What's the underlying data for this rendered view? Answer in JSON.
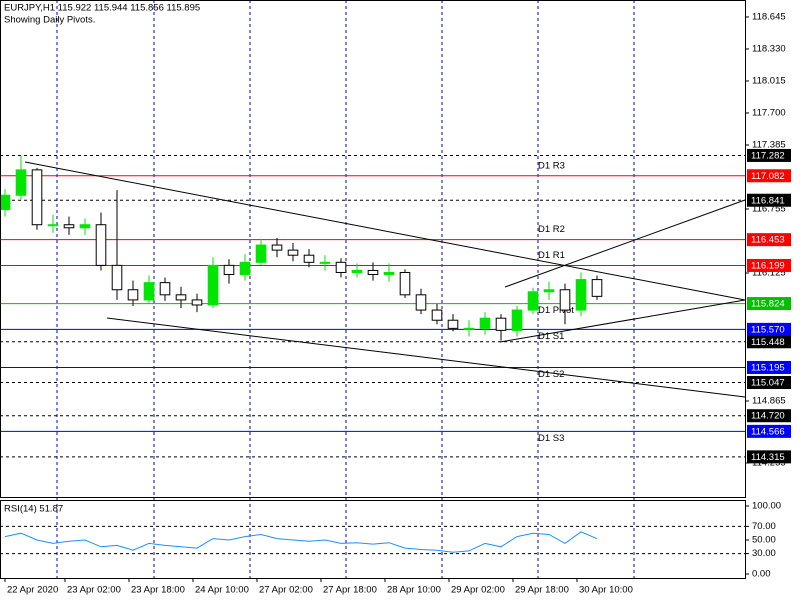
{
  "chart_data": [
    {
      "type": "candlestick",
      "title": "EURJPY,H1  115.922 115.944 115.856 115.895",
      "subtitle": "Showing Daily Pivots.",
      "x": [
        0,
        4,
        8,
        12,
        16,
        20,
        24,
        28,
        32,
        36,
        40,
        44,
        48,
        52,
        56,
        60,
        64,
        68,
        72,
        76,
        80,
        84,
        88,
        92,
        96,
        100,
        104,
        108,
        112,
        116,
        120,
        124,
        128,
        132,
        136,
        140,
        144,
        148
      ],
      "open": [
        116.75,
        116.89,
        117.14,
        116.6,
        116.6,
        116.57,
        116.6,
        116.2,
        115.96,
        115.86,
        116.03,
        115.91,
        115.86,
        115.81,
        116.2,
        116.11,
        116.23,
        116.4,
        116.35,
        116.3,
        116.23,
        116.23,
        116.13,
        116.15,
        116.11,
        116.13,
        115.91,
        115.76,
        115.66,
        115.58,
        115.58,
        115.68,
        115.56,
        115.76,
        115.94,
        115.96,
        115.76,
        116.06
      ],
      "high": [
        116.95,
        117.28,
        117.16,
        116.7,
        116.68,
        116.66,
        116.72,
        116.94,
        116.05,
        116.1,
        116.08,
        115.99,
        115.92,
        116.28,
        116.26,
        116.31,
        116.46,
        116.47,
        116.42,
        116.36,
        116.3,
        116.27,
        116.22,
        116.23,
        116.22,
        116.16,
        115.97,
        115.82,
        115.72,
        115.66,
        115.74,
        115.72,
        115.8,
        115.98,
        116.04,
        116.02,
        116.13,
        116.1
      ],
      "low": [
        116.68,
        116.85,
        116.55,
        116.52,
        116.5,
        116.5,
        116.15,
        115.86,
        115.8,
        115.82,
        115.85,
        115.78,
        115.74,
        115.78,
        116.02,
        116.05,
        116.2,
        116.28,
        116.24,
        116.18,
        116.15,
        116.08,
        116.08,
        116.05,
        116.04,
        115.88,
        115.72,
        115.62,
        115.55,
        115.5,
        115.52,
        115.46,
        115.5,
        115.72,
        115.86,
        115.62,
        115.7,
        115.86
      ],
      "close": [
        116.89,
        117.14,
        116.6,
        116.6,
        116.57,
        116.6,
        116.2,
        115.96,
        115.86,
        116.03,
        115.91,
        115.86,
        115.81,
        116.2,
        116.11,
        116.23,
        116.4,
        116.35,
        116.3,
        116.23,
        116.23,
        116.13,
        116.15,
        116.11,
        116.13,
        115.91,
        115.76,
        115.66,
        115.58,
        115.58,
        115.68,
        115.56,
        115.76,
        115.94,
        115.96,
        115.76,
        116.06,
        115.895
      ],
      "bull_color": "#00e600",
      "bear_color": "#000000",
      "xlim": [
        -1.25,
        185
      ],
      "ylim": [
        113.92,
        118.812
      ],
      "yticks": [
        118.645,
        {
          "value": 118.33,
          "label": "118.330"
        },
        118.015,
        {
          "value": 117.7,
          "label": "117.700"
        },
        117.385,
        116.755,
        116.125,
        114.865,
        114.255
      ],
      "xticks": [
        {
          "value": 0,
          "label": "22 Apr 2020"
        },
        {
          "value": 15,
          "label": "23 Apr 02:00"
        },
        {
          "value": 31,
          "label": "23 Apr 18:00"
        },
        {
          "value": 47,
          "label": "24 Apr 10:00"
        },
        {
          "value": 63,
          "label": "27 Apr 02:00"
        },
        {
          "value": 79,
          "label": "27 Apr 18:00"
        },
        {
          "value": 95,
          "label": "28 Apr 10:00"
        },
        {
          "value": 111,
          "label": "29 Apr 02:00"
        },
        {
          "value": 127,
          "label": "29 Apr 18:00"
        },
        {
          "value": 143,
          "label": "30 Apr 10:00"
        }
      ],
      "levels": [
        {
          "name": "D1 R3",
          "value": 117.082,
          "color": "#ff0000"
        },
        {
          "name": "D1 R2",
          "value": 116.453,
          "color": "#ff0000"
        },
        {
          "name": "D1 R1",
          "value": 116.199,
          "color": "#ff0000"
        },
        {
          "name": "D1 Pivot",
          "value": 115.824,
          "color": "#00c000"
        },
        {
          "name": "D1 S1",
          "value": 115.57,
          "value_label": "115.570",
          "color": "#0000ff"
        },
        {
          "name": "D1 S2",
          "value": 115.195,
          "color": "#0000ff"
        },
        {
          "name": "D1 S3",
          "value": 114.566,
          "color": "#0000ff"
        }
      ],
      "lines": [
        {
          "value": 117.282,
          "color": "#000000"
        },
        {
          "value": 116.841,
          "color": "#000000"
        },
        {
          "value": 115.448,
          "color": "#000000"
        },
        {
          "value": 115.047,
          "color": "#000000"
        },
        {
          "value": 114.72,
          "value_label": "114.720",
          "color": "#000000"
        },
        {
          "value": 114.315,
          "color": "#000000"
        }
      ]
    },
    {
      "type": "line",
      "title": "RSI(14) 51.87",
      "x": [
        0,
        4,
        8,
        12,
        16,
        20,
        24,
        28,
        32,
        36,
        40,
        44,
        48,
        52,
        56,
        60,
        64,
        68,
        72,
        76,
        80,
        84,
        88,
        92,
        96,
        100,
        104,
        108,
        112,
        116,
        120,
        124,
        128,
        132,
        136,
        140,
        144,
        148
      ],
      "values": [
        55,
        60,
        50,
        45,
        48,
        50,
        40,
        42,
        35,
        45,
        42,
        40,
        38,
        52,
        50,
        55,
        58,
        52,
        50,
        48,
        50,
        45,
        46,
        44,
        46,
        38,
        36,
        35,
        32,
        34,
        45,
        40,
        55,
        60,
        58,
        45,
        62,
        51.87
      ],
      "color": "#1e90ff",
      "xlim": [
        -1.25,
        185
      ],
      "ylim": [
        -5.9,
        108.8
      ],
      "yticks": [
        {
          "value": 100,
          "label": "100.00"
        },
        {
          "value": 70,
          "label": "70.00"
        },
        {
          "value": 50,
          "label": "50.00"
        },
        {
          "value": 30,
          "label": "30.00"
        },
        {
          "value": 0,
          "label": "0.00"
        }
      ],
      "levels": [
        70,
        30
      ]
    }
  ]
}
